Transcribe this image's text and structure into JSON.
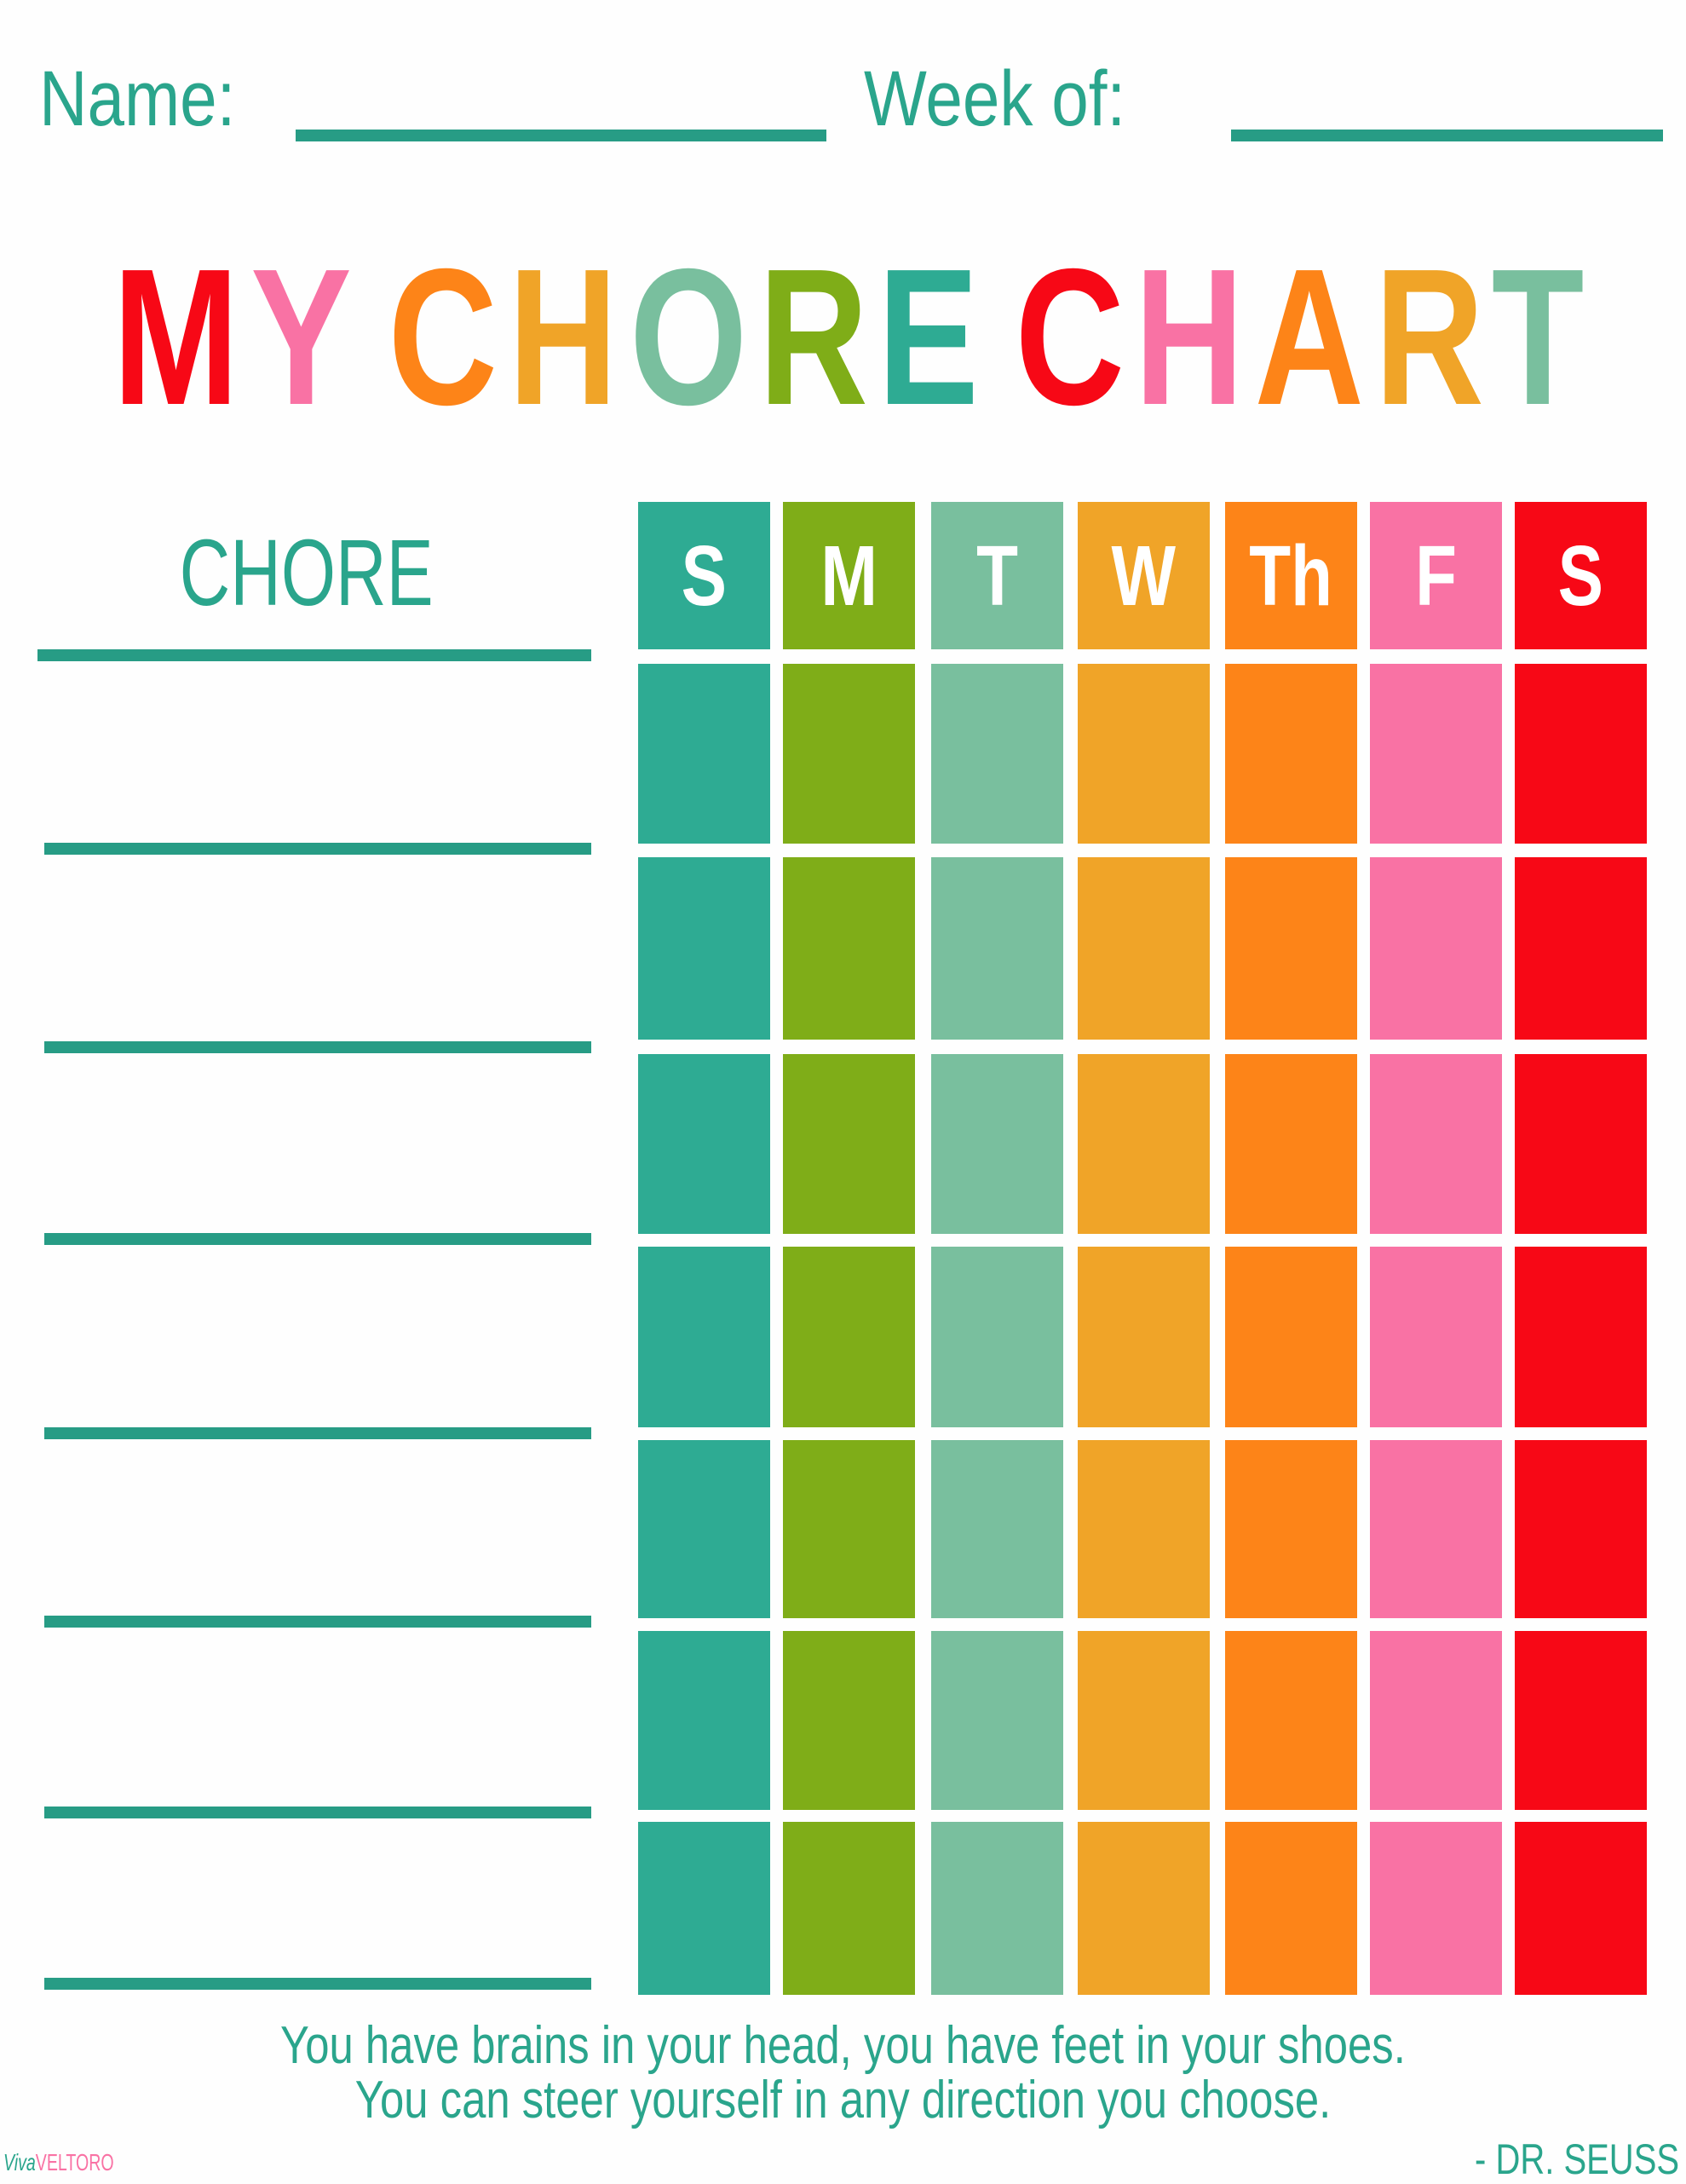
{
  "header": {
    "name_label": "Name:",
    "week_label": "Week of:"
  },
  "title": {
    "text": "MY CHORE CHART",
    "letter_colors": [
      "#f70816",
      "#f972a4",
      "#ffffff",
      "#fd8418",
      "#f0a428",
      "#79bf9e",
      "#7fad18",
      "#2eab93",
      "#ffffff",
      "#f70816",
      "#f972a4",
      "#fd8418",
      "#f0a428",
      "#79bf9e"
    ]
  },
  "chore_column": {
    "heading": "CHORE",
    "chores": [
      "",
      "",
      "",
      "",
      "",
      "",
      ""
    ]
  },
  "days": [
    {
      "label": "S",
      "color": "#2eab93"
    },
    {
      "label": "M",
      "color": "#7fad18"
    },
    {
      "label": "T",
      "color": "#79bf9e"
    },
    {
      "label": "W",
      "color": "#f0a428"
    },
    {
      "label": "Th",
      "color": "#fd8418"
    },
    {
      "label": "F",
      "color": "#f972a4"
    },
    {
      "label": "S",
      "color": "#f70816"
    }
  ],
  "colors": {
    "accent": "#2aa58c",
    "line": "#279c85"
  },
  "quote": {
    "line1": "You have brains in your head, you have feet in your shoes.",
    "line2": "You can steer yourself in any direction you choose.",
    "author": "- DR. SEUSS"
  },
  "logo": {
    "part1": "Viva",
    "part2": "VELTORO"
  }
}
